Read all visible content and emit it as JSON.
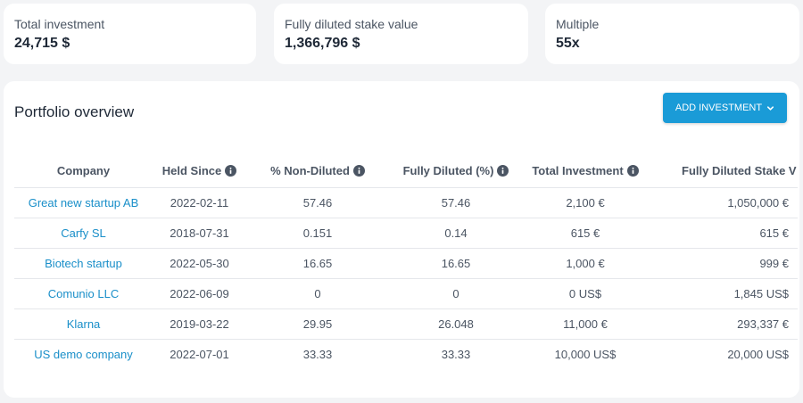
{
  "stats": [
    {
      "label": "Total investment",
      "value": "24,715 $"
    },
    {
      "label": "Fully diluted stake value",
      "value": "1,366,796 $"
    },
    {
      "label": "Multiple",
      "value": "55x"
    }
  ],
  "panel": {
    "title": "Portfolio overview",
    "add_button_label": "ADD INVESTMENT"
  },
  "table": {
    "headers": {
      "company": "Company",
      "held_since": "Held Since",
      "non_diluted": "% Non-Diluted",
      "fully_diluted": "Fully Diluted (%)",
      "total_investment": "Total Investment",
      "fully_diluted_stake": "Fully Diluted Stake V"
    },
    "rows": [
      {
        "company": "Great new startup AB",
        "held_since": "2022-02-11",
        "non_diluted": "57.46",
        "fully_diluted": "57.46",
        "total_investment": "2,100 €",
        "fully_diluted_stake": "1,050,000 €"
      },
      {
        "company": "Carfy SL",
        "held_since": "2018-07-31",
        "non_diluted": "0.151",
        "fully_diluted": "0.14",
        "total_investment": "615 €",
        "fully_diluted_stake": "615 €"
      },
      {
        "company": "Biotech startup",
        "held_since": "2022-05-30",
        "non_diluted": "16.65",
        "fully_diluted": "16.65",
        "total_investment": "1,000 €",
        "fully_diluted_stake": "999 €"
      },
      {
        "company": "Comunio LLC",
        "held_since": "2022-06-09",
        "non_diluted": "0",
        "fully_diluted": "0",
        "total_investment": "0 US$",
        "fully_diluted_stake": "1,845 US$"
      },
      {
        "company": "Klarna",
        "held_since": "2019-03-22",
        "non_diluted": "29.95",
        "fully_diluted": "26.048",
        "total_investment": "11,000 €",
        "fully_diluted_stake": "293,337 €"
      },
      {
        "company": "US demo company",
        "held_since": "2022-07-01",
        "non_diluted": "33.33",
        "fully_diluted": "33.33",
        "total_investment": "10,000 US$",
        "fully_diluted_stake": "20,000 US$"
      }
    ]
  },
  "icons": {
    "info": "info-circle-icon",
    "dropdown": "chevron-down-icon"
  },
  "colors": {
    "accent": "#1a9bd7",
    "link": "#1a8fc9",
    "background": "#f3f4f6",
    "card": "#ffffff"
  }
}
